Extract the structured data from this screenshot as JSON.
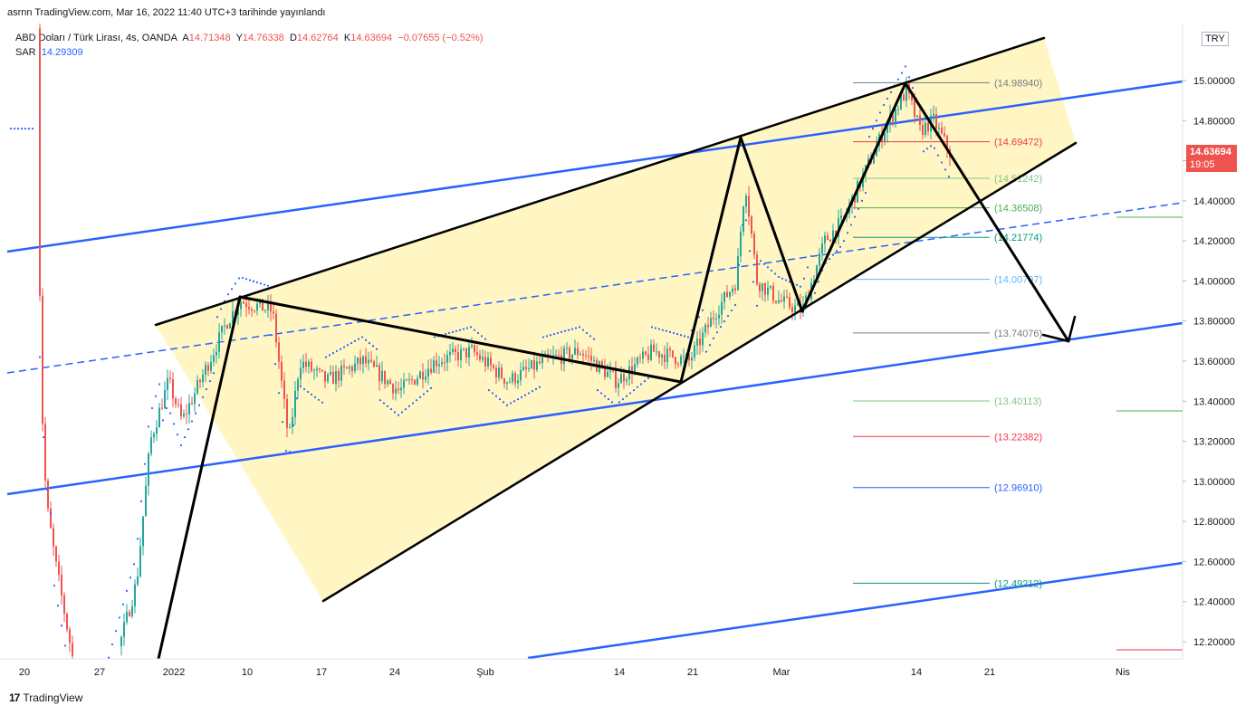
{
  "header": {
    "published": "asrnn TradingView.com, Mar 16, 2022 11:40 UTC+3 tarihinde yayınlandı",
    "symbol": "ABD Doları / Türk Lirası, 4s, OANDA",
    "open_label": "A",
    "open": "14.71348",
    "high_label": "Y",
    "high": "14.76338",
    "low_label": "D",
    "low": "14.62764",
    "close_label": "K",
    "close": "14.63694",
    "change": "−0.07655 (−0.52%)",
    "sar_label": "SAR",
    "sar_value": "14.29309",
    "currency": "TRY"
  },
  "current_price": {
    "value": "14.63694",
    "countdown": "19:05"
  },
  "footer": {
    "brand": "TradingView"
  },
  "colors": {
    "up": "#26a69a",
    "down": "#ef5350",
    "sar": "#2962ff",
    "channel": "#2962ff",
    "wedge_fill": "#fff3b0",
    "pattern": "#000000"
  },
  "chart_data": {
    "type": "candlestick",
    "ylim": [
      12.1,
      15.2
    ],
    "yticks": [
      "15.00000",
      "14.80000",
      "14.60000",
      "14.40000",
      "14.20000",
      "14.00000",
      "13.80000",
      "13.60000",
      "13.40000",
      "13.20000",
      "13.00000",
      "12.80000",
      "12.60000",
      "12.40000",
      "12.20000"
    ],
    "xticks": [
      "20",
      "27",
      "2022",
      "10",
      "17",
      "24",
      "Şub",
      "14",
      "21",
      "Mar",
      "14",
      "21",
      "Nis"
    ],
    "fib_levels": [
      {
        "label": "(14.98940)",
        "value": 14.9894,
        "color": "#787b86"
      },
      {
        "label": "(14.69472)",
        "value": 14.69472,
        "color": "#f23645"
      },
      {
        "label": "(14.51242)",
        "value": 14.51242,
        "color": "#81c784"
      },
      {
        "label": "(14.36508)",
        "value": 14.36508,
        "color": "#4caf50"
      },
      {
        "label": "(14.21774)",
        "value": 14.21774,
        "color": "#089981"
      },
      {
        "label": "(14.00797)",
        "value": 14.00797,
        "color": "#64b5f6"
      },
      {
        "label": "(13.74076)",
        "value": 13.74076,
        "color": "#787b86"
      },
      {
        "label": "(13.40113)",
        "value": 13.40113,
        "color": "#81c784"
      },
      {
        "label": "(13.22382)",
        "value": 13.22382,
        "color": "#f23645"
      },
      {
        "label": "(12.96910)",
        "value": 12.9691,
        "color": "#2962ff"
      },
      {
        "label": "(12.49212)",
        "value": 12.49212,
        "color": "#089981"
      }
    ]
  }
}
